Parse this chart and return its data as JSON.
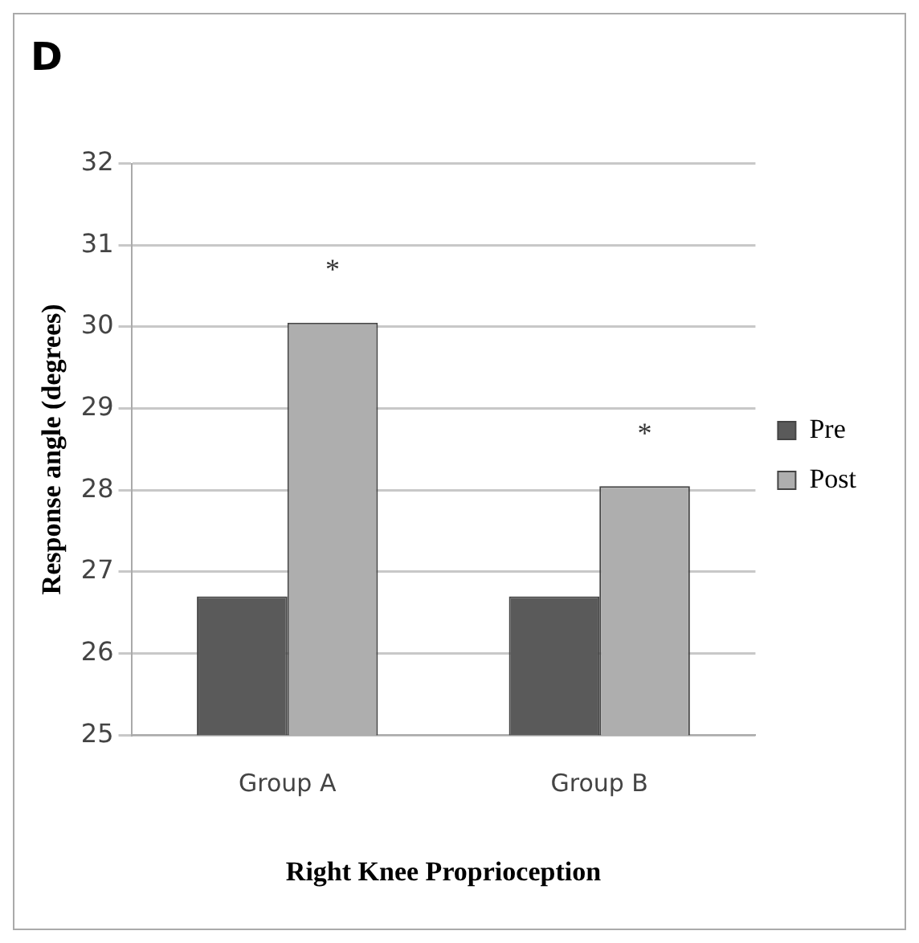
{
  "chart_data": {
    "type": "bar",
    "title": "D",
    "xlabel": "Right Knee Proprioception",
    "ylabel": "Response angle (degrees)",
    "categories": [
      "Group A",
      "Group B"
    ],
    "series": [
      {
        "name": "Pre",
        "color": "#5a5a5a",
        "values": [
          26.7,
          26.7
        ]
      },
      {
        "name": "Post",
        "color": "#aeaeae",
        "values": [
          30.05,
          28.05
        ]
      }
    ],
    "ylim": [
      25,
      32
    ],
    "yticks": [
      25,
      26,
      27,
      28,
      29,
      30,
      31,
      32
    ],
    "grid": "y",
    "legend": "right",
    "annotations": [
      "*",
      "*"
    ]
  }
}
